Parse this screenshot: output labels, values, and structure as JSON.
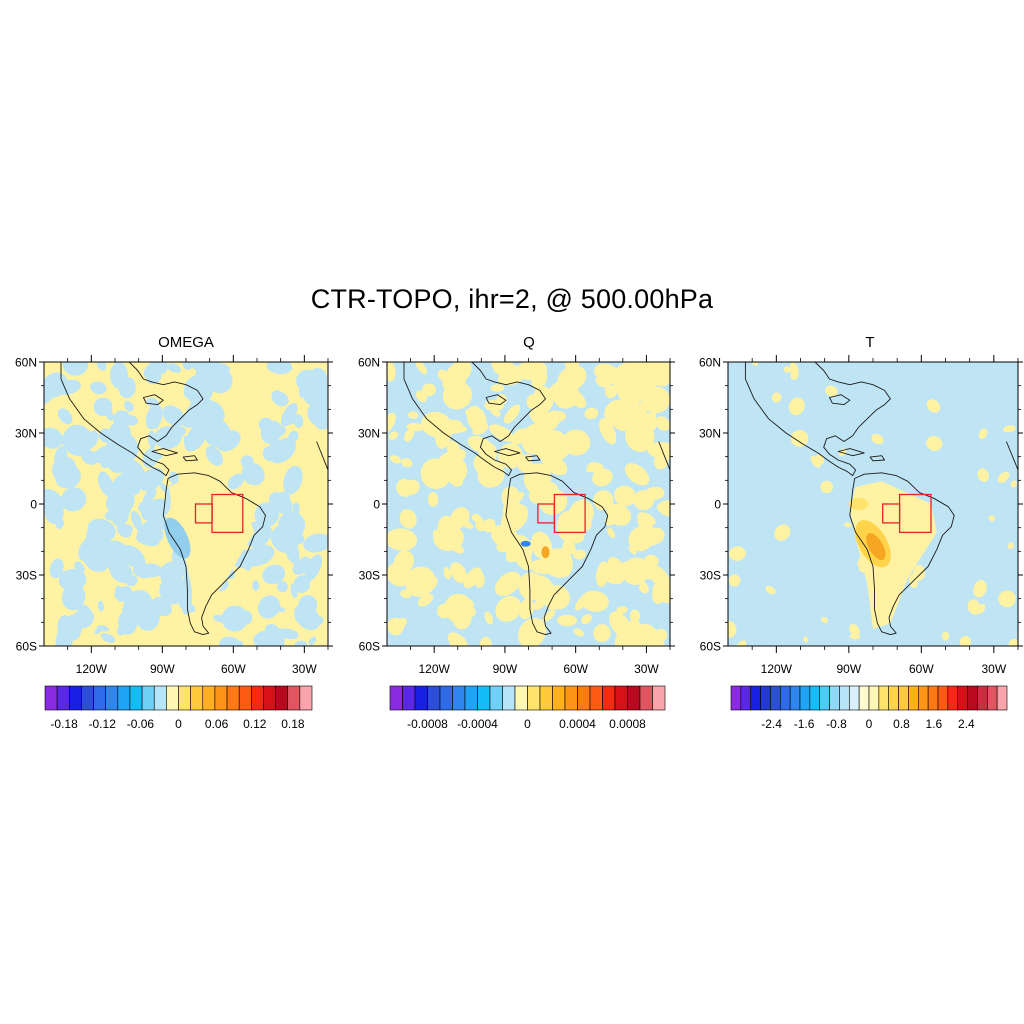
{
  "figure": {
    "title": "CTR-TOPO, ihr=2, @ 500.00hPa"
  },
  "map": {
    "lat_ticks": [
      "60N",
      "30N",
      "0",
      "30S",
      "60S"
    ],
    "lat_values": [
      60,
      30,
      0,
      -30,
      -60
    ],
    "lon_ticks": [
      "120W",
      "90W",
      "60W",
      "30W"
    ],
    "lon_values": [
      -120,
      -90,
      -60,
      -30
    ],
    "lon_range": [
      -140,
      -20
    ],
    "lat_range": [
      -60,
      60
    ],
    "highlight_boxes": [
      {
        "lon": [
          -76,
          -69
        ],
        "lat": [
          -8,
          0
        ]
      },
      {
        "lon": [
          -69,
          -56
        ],
        "lat": [
          -12,
          4
        ]
      }
    ],
    "box_color": "#e8202a"
  },
  "colors": {
    "land_yellow": "#fff3a3",
    "pale_blue": "#bfe5f5",
    "mid_blue": "#92cfee",
    "orange": "#f5a623",
    "coast": "#1a1a1a"
  },
  "panels": [
    {
      "name": "OMEGA",
      "background": "yellow",
      "colorbar": {
        "labels": [
          "-0.18",
          "-0.12",
          "-0.06",
          "0",
          "0.06",
          "0.12",
          "0.18"
        ],
        "label_values": [
          -0.18,
          -0.12,
          -0.06,
          0,
          0.06,
          0.12,
          0.18
        ],
        "min": -0.21,
        "max": 0.21,
        "colors": [
          "#8a2be2",
          "#5a26e8",
          "#1a1fe6",
          "#2d4fd6",
          "#2f6be8",
          "#2f86ee",
          "#1ea3f5",
          "#14bdf6",
          "#6fd1f6",
          "#b6e4f8",
          "#fff7b3",
          "#ffe36a",
          "#ffca3a",
          "#ffb020",
          "#ff9516",
          "#ff7a14",
          "#ff5a14",
          "#f42a14",
          "#d8101a",
          "#b80a1e",
          "#e05560",
          "#f9a3aa"
        ]
      }
    },
    {
      "name": "Q",
      "background": "blue",
      "colorbar": {
        "labels": [
          "-0.0008",
          "-0.0004",
          "0",
          "0.0004",
          "0.0008"
        ],
        "label_values": [
          -0.0008,
          -0.0004,
          0,
          0.0004,
          0.0008
        ],
        "min": -0.0011,
        "max": 0.0011,
        "colors": [
          "#8a2be2",
          "#5a26e8",
          "#1a1fe6",
          "#2d4fd6",
          "#2f6be8",
          "#2f86ee",
          "#1ea3f5",
          "#14bdf6",
          "#6fd1f6",
          "#b6e4f8",
          "#fff7b3",
          "#ffe36a",
          "#ffca3a",
          "#ffb020",
          "#ff9516",
          "#ff7a14",
          "#ff5a14",
          "#f42a14",
          "#d8101a",
          "#b80a1e",
          "#e05560",
          "#f9a3aa"
        ]
      }
    },
    {
      "name": "T",
      "background": "blue",
      "colorbar": {
        "labels": [
          "-2.4",
          "-1.6",
          "-0.8",
          "0",
          "0.8",
          "1.6",
          "2.4"
        ],
        "label_values": [
          -2.4,
          -1.6,
          -0.8,
          0,
          0.8,
          1.6,
          2.4
        ],
        "min": -3.4,
        "max": 3.4,
        "colors": [
          "#8a2be2",
          "#5a26e8",
          "#1a1fe6",
          "#233ad2",
          "#2d4fd6",
          "#2f6be8",
          "#2f86ee",
          "#1ea3f5",
          "#14bdf6",
          "#4fc9f6",
          "#8fd8f6",
          "#b6e4f8",
          "#d9f0fa",
          "#fffbd0",
          "#fff7b3",
          "#ffe36a",
          "#ffd34a",
          "#ffca3a",
          "#ffb020",
          "#ff9516",
          "#ff7a14",
          "#ff5a14",
          "#f42a14",
          "#d8101a",
          "#b80a1e",
          "#c83040",
          "#e05560",
          "#f9a3aa"
        ]
      }
    }
  ]
}
